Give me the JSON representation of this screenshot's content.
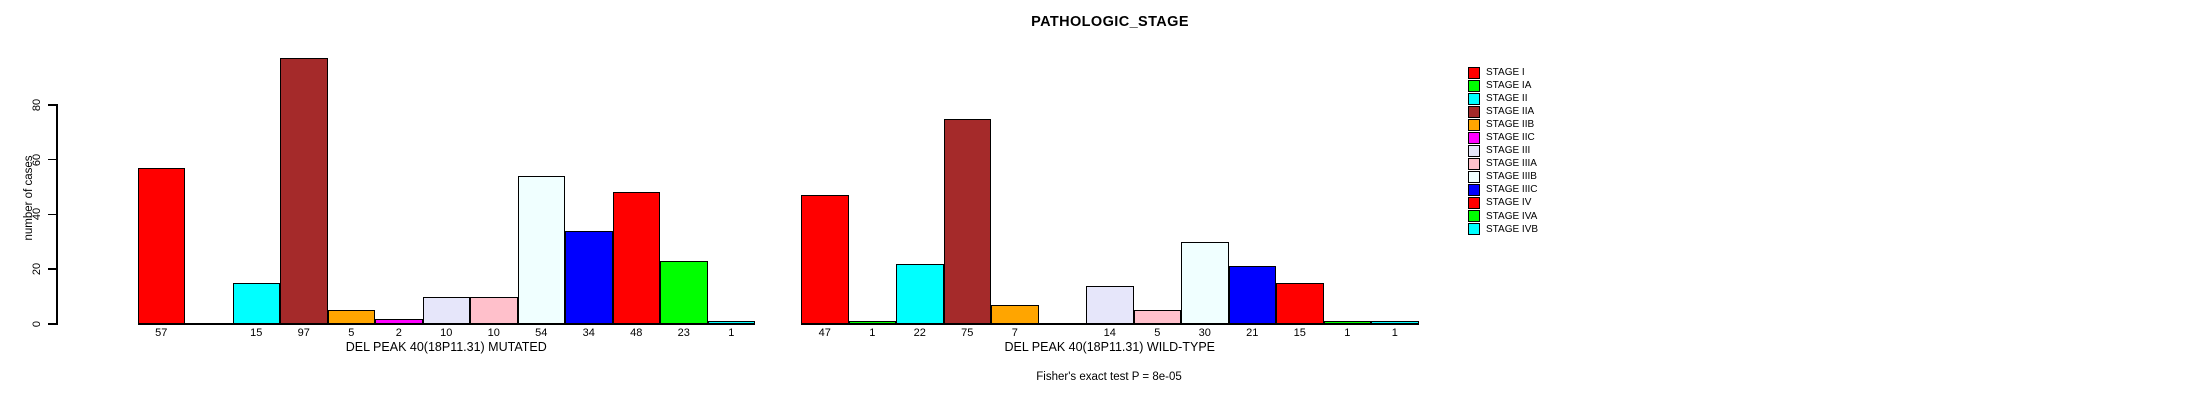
{
  "chart_data": {
    "type": "bar",
    "title": "PATHOLOGIC_STAGE",
    "ylabel": "number of cases",
    "ylim": [
      0,
      97
    ],
    "yticks": [
      0,
      20,
      40,
      60,
      80
    ],
    "grid": false,
    "legend_position": "right",
    "categories": [
      "STAGE I",
      "STAGE IA",
      "STAGE II",
      "STAGE IIA",
      "STAGE IIB",
      "STAGE IIC",
      "STAGE III",
      "STAGE IIIA",
      "STAGE IIIB",
      "STAGE IIIC",
      "STAGE IV",
      "STAGE IVA",
      "STAGE IVB"
    ],
    "colors": [
      "#FF0000",
      "#00FF00",
      "#00FFFF",
      "#A52A2A",
      "#FFA500",
      "#FF00FF",
      "#E6E6FA",
      "#FFC0CB",
      "#F0FFFF",
      "#0000FF",
      "#FF0000",
      "#00FF00",
      "#00FFFF"
    ],
    "bar_border_color": "#000000",
    "series": [
      {
        "name": "DEL PEAK 40(18P11.31) MUTATED",
        "values": [
          57,
          0,
          15,
          97,
          5,
          2,
          10,
          10,
          54,
          34,
          48,
          23,
          1
        ]
      },
      {
        "name": "DEL PEAK 40(18P11.31) WILD-TYPE",
        "values": [
          47,
          1,
          22,
          75,
          7,
          0,
          14,
          5,
          30,
          21,
          15,
          1,
          1
        ]
      }
    ],
    "footer": "Fisher's exact test P = 8e-05"
  }
}
